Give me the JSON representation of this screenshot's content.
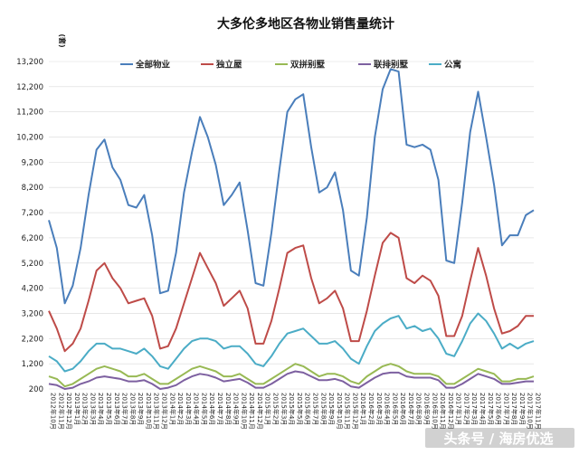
{
  "chart_data": {
    "type": "line",
    "title": "大多伦多地区各物业销售量统计",
    "ylabel": "(套)",
    "xlabel": "",
    "ylim": [
      200,
      13200
    ],
    "yticks": [
      "200",
      "1,200",
      "2,200",
      "3,200",
      "4,200",
      "5,200",
      "6,200",
      "7,200",
      "8,200",
      "9,200",
      "10,200",
      "11,200",
      "12,200",
      "13,200"
    ],
    "ytick_values": [
      200,
      1200,
      2200,
      3200,
      4200,
      5200,
      6200,
      7200,
      8200,
      9200,
      10200,
      11200,
      12200,
      13200
    ],
    "x": [
      "2012年10月",
      "2012年11月",
      "2012年12月",
      "2013年1月",
      "2013年2月",
      "2013年3月",
      "2013年4月",
      "2013年5月",
      "2013年6月",
      "2013年7月",
      "2013年8月",
      "2013年9月",
      "2013年10月",
      "2013年11月",
      "2013年12月",
      "2014年1月",
      "2014年2月",
      "2014年3月",
      "2014年4月",
      "2014年5月",
      "2014年6月",
      "2014年7月",
      "2014年8月",
      "2014年9月",
      "2014年10月",
      "2014年11月",
      "2014年12月",
      "2015年1月",
      "2015年2月",
      "2015年3月",
      "2015年4月",
      "2015年5月",
      "2015年6月",
      "2015年7月",
      "2015年8月",
      "2015年9月",
      "2015年10月",
      "2015年11月",
      "2015年12月",
      "2016年1月",
      "2016年2月",
      "2016年3月",
      "2016年4月",
      "2016年5月",
      "2016年6月",
      "2016年7月",
      "2016年8月",
      "2016年9月",
      "2016年10月",
      "2016年11月",
      "2016年12月",
      "2017年1月",
      "2017年2月",
      "2017年3月",
      "2017年4月",
      "2017年5月",
      "2017年6月",
      "2017年7月",
      "2017年8月",
      "2017年9月",
      "2017年10月",
      "2017年11月"
    ],
    "legend_position": "top",
    "grid": true,
    "series": [
      {
        "name": "全部物业",
        "color": "#4a7ebb",
        "values": [
          6900,
          5800,
          3600,
          4300,
          5800,
          7900,
          9700,
          10100,
          9000,
          8500,
          7500,
          7400,
          7900,
          6300,
          4000,
          4100,
          5600,
          8000,
          9600,
          11000,
          10200,
          9100,
          7500,
          7900,
          8400,
          6500,
          4400,
          4300,
          6400,
          8900,
          11200,
          11700,
          11900,
          9800,
          8000,
          8200,
          8800,
          7300,
          4900,
          4700,
          7000,
          10200,
          12100,
          12900,
          12800,
          9900,
          9800,
          9900,
          9700,
          8500,
          5300,
          5200,
          7600,
          10400,
          12000,
          10200,
          8300,
          5900,
          6300,
          6300,
          7100,
          7300
        ]
      },
      {
        "name": "独立屋",
        "color": "#be4b48",
        "values": [
          3300,
          2600,
          1700,
          2000,
          2600,
          3700,
          4900,
          5200,
          4600,
          4200,
          3600,
          3700,
          3800,
          3100,
          1800,
          1900,
          2600,
          3600,
          4600,
          5600,
          5000,
          4400,
          3500,
          3800,
          4100,
          3400,
          2000,
          2000,
          2900,
          4200,
          5600,
          5800,
          5900,
          4600,
          3600,
          3800,
          4100,
          3400,
          2100,
          2100,
          3300,
          4700,
          6000,
          6400,
          6200,
          4600,
          4400,
          4700,
          4500,
          3900,
          2300,
          2300,
          3100,
          4500,
          5800,
          4700,
          3400,
          2400,
          2500,
          2700,
          3100,
          3100
        ]
      },
      {
        "name": "双拼别墅",
        "color": "#98b954",
        "values": [
          700,
          600,
          300,
          400,
          600,
          800,
          1000,
          1100,
          1000,
          900,
          700,
          700,
          800,
          600,
          400,
          400,
          600,
          800,
          1000,
          1100,
          1000,
          900,
          700,
          700,
          800,
          600,
          400,
          400,
          600,
          800,
          1000,
          1200,
          1100,
          900,
          700,
          800,
          800,
          700,
          500,
          400,
          700,
          900,
          1100,
          1200,
          1100,
          900,
          800,
          800,
          800,
          700,
          400,
          400,
          600,
          800,
          1000,
          900,
          800,
          500,
          500,
          600,
          600,
          700
        ]
      },
      {
        "name": "联排别墅",
        "color": "#7d60a0",
        "values": [
          400,
          350,
          200,
          250,
          400,
          500,
          650,
          700,
          650,
          600,
          500,
          500,
          550,
          400,
          200,
          250,
          350,
          550,
          700,
          800,
          750,
          650,
          500,
          550,
          600,
          450,
          250,
          250,
          400,
          600,
          800,
          900,
          850,
          700,
          550,
          550,
          600,
          500,
          300,
          250,
          450,
          650,
          800,
          850,
          850,
          700,
          650,
          650,
          650,
          550,
          250,
          250,
          400,
          600,
          800,
          700,
          600,
          400,
          400,
          450,
          500,
          500
        ]
      },
      {
        "name": "公寓",
        "color": "#4bacc6",
        "values": [
          1500,
          1300,
          900,
          1000,
          1300,
          1700,
          2000,
          2000,
          1800,
          1800,
          1700,
          1600,
          1800,
          1500,
          1100,
          1000,
          1400,
          1800,
          2100,
          2200,
          2200,
          2100,
          1800,
          1900,
          1900,
          1600,
          1200,
          1100,
          1500,
          2000,
          2400,
          2500,
          2600,
          2300,
          2000,
          2000,
          2100,
          1800,
          1400,
          1200,
          1900,
          2500,
          2800,
          3000,
          3100,
          2600,
          2700,
          2500,
          2600,
          2200,
          1600,
          1500,
          2100,
          2800,
          3200,
          2900,
          2400,
          1800,
          2000,
          1800,
          2000,
          2100
        ]
      }
    ]
  },
  "watermark": "头条号 / 海房优选"
}
